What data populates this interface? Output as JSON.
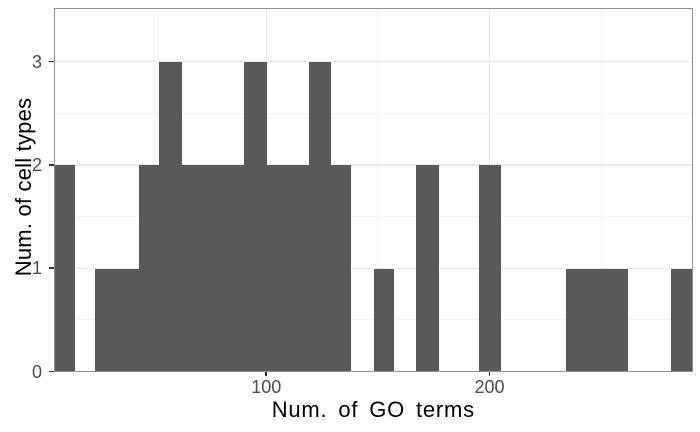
{
  "chart_data": {
    "type": "bar",
    "subtype": "histogram",
    "title": "",
    "xlabel": "Num. of GO terms",
    "ylabel": "Num. of cell types",
    "xlim": [
      4.8,
      291.1
    ],
    "ylim": [
      0,
      3.52
    ],
    "grid": true,
    "legend": false,
    "x_ticks": [
      {
        "value": 100,
        "label": "100"
      },
      {
        "value": 200,
        "label": "200"
      }
    ],
    "y_ticks": [
      {
        "value": 0,
        "label": "0"
      },
      {
        "value": 1,
        "label": "1"
      },
      {
        "value": 2,
        "label": "2"
      },
      {
        "value": 3,
        "label": "3"
      }
    ],
    "x_major_gridlines": [
      100,
      200
    ],
    "x_minor_gridlines": [
      50,
      150,
      250
    ],
    "y_major_gridlines": [
      1,
      2,
      3
    ],
    "y_minor_gridlines": [
      0.5,
      1.5,
      2.5
    ],
    "bins": [
      {
        "from": 5,
        "to": 14,
        "count": 2
      },
      {
        "from": 23,
        "to": 33,
        "count": 1
      },
      {
        "from": 33,
        "to": 43,
        "count": 1
      },
      {
        "from": 43,
        "to": 52,
        "count": 2
      },
      {
        "from": 52,
        "to": 62,
        "count": 3
      },
      {
        "from": 62,
        "to": 71,
        "count": 2
      },
      {
        "from": 71,
        "to": 81,
        "count": 2
      },
      {
        "from": 81,
        "to": 90,
        "count": 2
      },
      {
        "from": 90,
        "to": 100,
        "count": 3
      },
      {
        "from": 100,
        "to": 110,
        "count": 2
      },
      {
        "from": 110,
        "to": 119,
        "count": 2
      },
      {
        "from": 119,
        "to": 129,
        "count": 3
      },
      {
        "from": 129,
        "to": 138,
        "count": 2
      },
      {
        "from": 148,
        "to": 157,
        "count": 1
      },
      {
        "from": 167,
        "to": 177,
        "count": 2
      },
      {
        "from": 195,
        "to": 205,
        "count": 2
      },
      {
        "from": 234,
        "to": 243,
        "count": 1
      },
      {
        "from": 243,
        "to": 253,
        "count": 1
      },
      {
        "from": 253,
        "to": 262,
        "count": 1
      },
      {
        "from": 281,
        "to": 291,
        "count": 1
      }
    ],
    "colors": {
      "bar_fill": "#595959",
      "panel_border": "#919191",
      "grid_major": "#e8e8e8",
      "grid_minor": "#f4f4f4",
      "tick_mark": "#333333",
      "tick_label": "#4d4d4d",
      "axis_title": "#000000",
      "background": "#ffffff"
    }
  }
}
